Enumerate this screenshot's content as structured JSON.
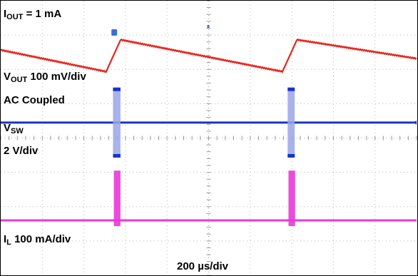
{
  "chart_data": {
    "type": "line",
    "title": "",
    "timebase": "200 µs/div",
    "grid": true,
    "colors": {
      "vout": "#e8241e",
      "vsw": "#1a33c8",
      "vsw_fill": "#9aa4e8",
      "il": "#e83ad8",
      "grid": "#b8b8b8",
      "marker": "#3b6fd6"
    },
    "labels": {
      "iout": {
        "main": "I",
        "sub": "OUT",
        "rest": " = 1 mA"
      },
      "vout": {
        "main": "V",
        "sub": "OUT",
        "rest": " 100 mV/div"
      },
      "coupling": "AC Coupled",
      "vsw": {
        "main": "V",
        "sub": "SW"
      },
      "vsw_scale": "2 V/div",
      "il": {
        "main": "I",
        "sub": "L",
        "rest": " 100 mA/div"
      }
    },
    "x_unit": "divisions",
    "x_range": [
      0,
      10
    ],
    "series": [
      {
        "key": "vout",
        "scale": "100 mV/div",
        "y_unit": "divisions",
        "x": [
          0.0,
          2.53,
          2.88,
          6.77,
          7.12,
          10.0
        ],
        "y": [
          6.55,
          5.92,
          6.85,
          5.92,
          6.85,
          6.3
        ]
      },
      {
        "key": "vsw",
        "scale": "2 V/div",
        "y_unit": "divisions",
        "baseline": 4.45,
        "pulse_low": 3.45,
        "pulse_high": 5.45,
        "pulses": [
          [
            2.7,
            2.88
          ],
          [
            6.9,
            7.07
          ]
        ]
      },
      {
        "key": "il",
        "scale": "100 mA/div",
        "y_unit": "divisions",
        "baseline": 1.6,
        "pulse_high": 3.05,
        "pulses": [
          [
            2.72,
            2.88
          ],
          [
            6.92,
            7.08
          ]
        ]
      }
    ]
  }
}
